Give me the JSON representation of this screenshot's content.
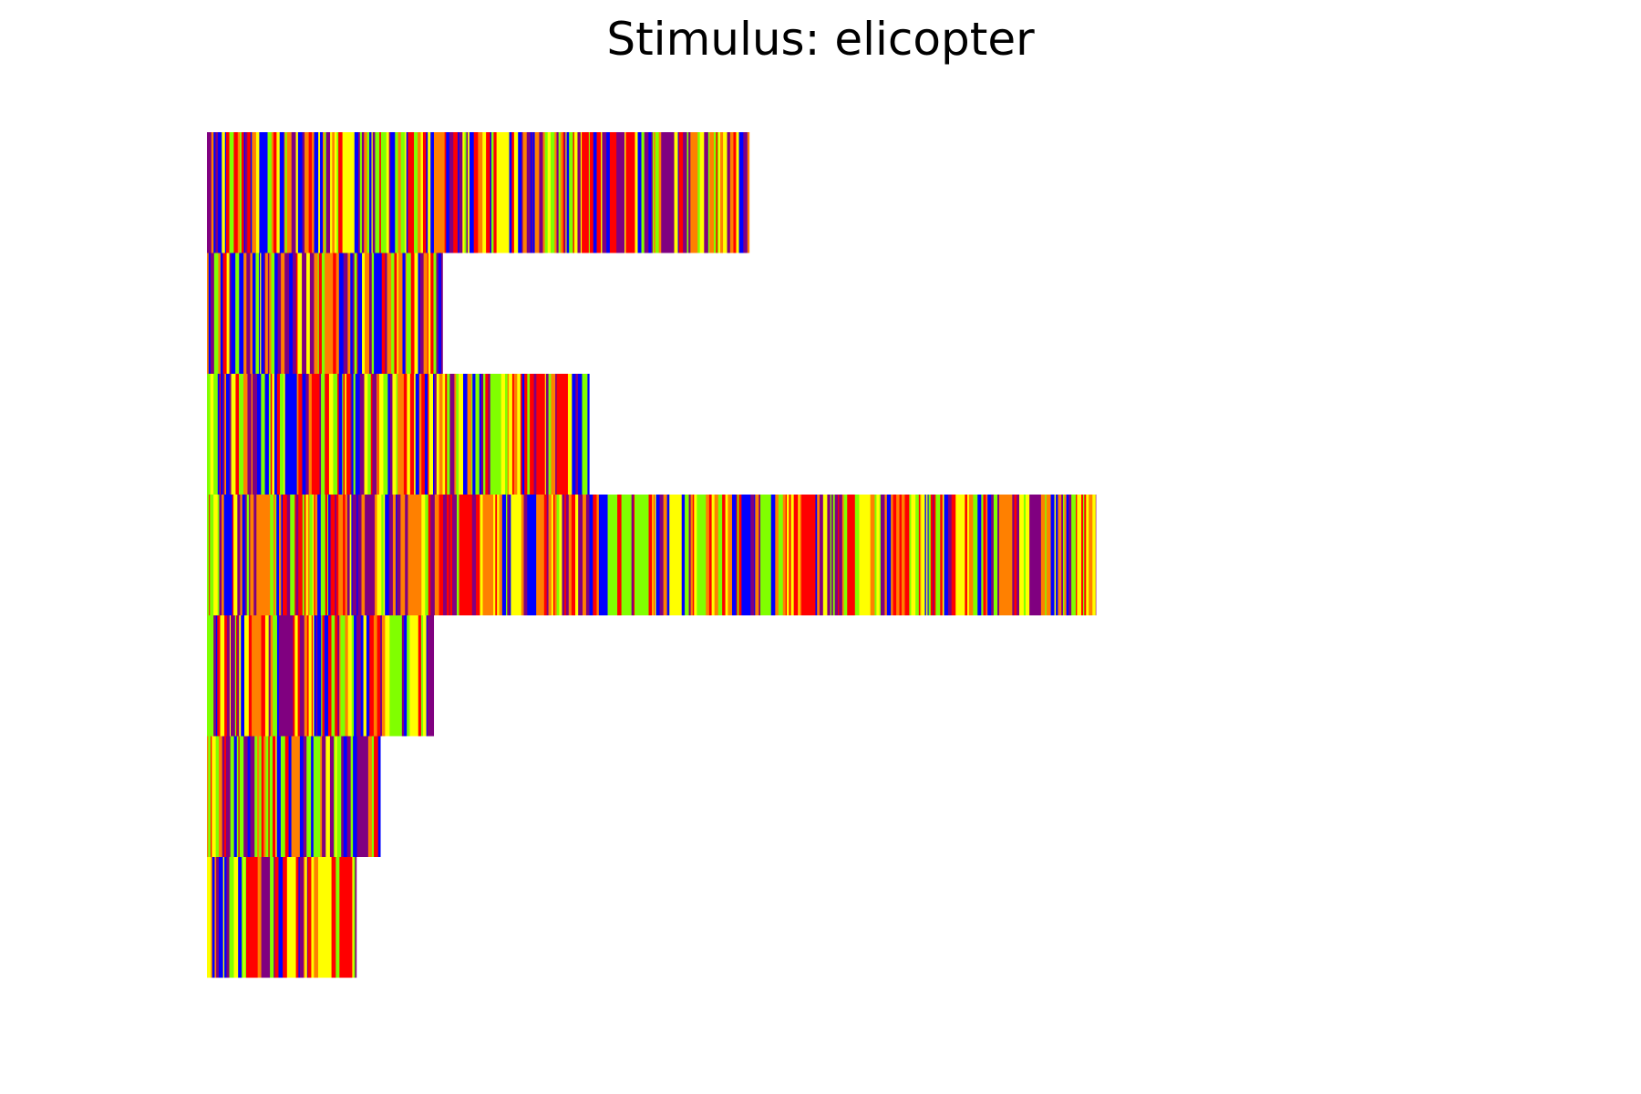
{
  "chart_data": {
    "type": "heatmap",
    "title": "Stimulus: elicopter",
    "xlabel": "",
    "ylabel": "",
    "grid": false,
    "axes_visible": false,
    "xlim": [
      0,
      100
    ],
    "palette": [
      "#ff0000",
      "#ffff00",
      "#0000ff",
      "#800080",
      "#ff8000",
      "#80ff00"
    ],
    "rows": [
      {
        "length": 61
      },
      {
        "length": 26.5
      },
      {
        "length": 43
      },
      {
        "length": 100
      },
      {
        "length": 25.5
      },
      {
        "length": 19.5
      },
      {
        "length": 16.8
      }
    ]
  }
}
